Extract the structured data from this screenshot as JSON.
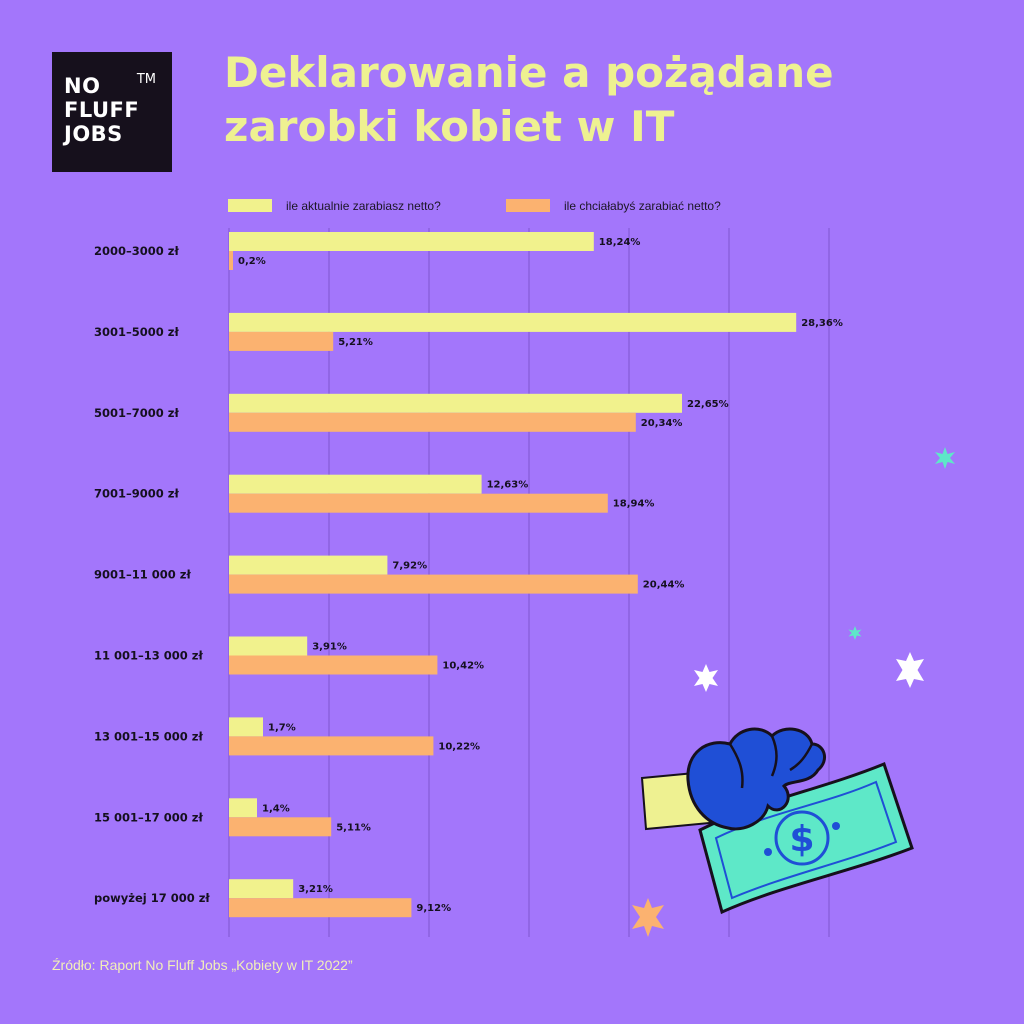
{
  "logo": {
    "line1": "NO",
    "line2": "FLUFF",
    "line3": "JOBS",
    "tm": "TM"
  },
  "title": {
    "line1": "Deklarowanie a pożądane",
    "line2": "zarobki kobiet w IT"
  },
  "source": "Źródło: Raport No Fluff Jobs „Kobiety w IT 2022”",
  "colors": {
    "background": "#a376fb",
    "current": "#f1f28d",
    "desired": "#fbb270",
    "title": "#eef191",
    "logo_bg": "#16101c"
  },
  "chart_data": {
    "type": "bar",
    "orientation": "horizontal",
    "categories": [
      "2000–3000 zł",
      "3001–5000 zł",
      "5001–7000 zł",
      "7001–9000 zł",
      "9001–11 000 zł",
      "11 001–13 000 zł",
      "13 001–15 000 zł",
      "15 001–17 000 zł",
      "powyżej 17 000 zł"
    ],
    "series": [
      {
        "name": "ile aktualnie zarabiasz netto?",
        "color": "#f1f28d",
        "values": [
          18.24,
          28.36,
          22.65,
          12.63,
          7.92,
          3.91,
          1.7,
          1.4,
          3.21
        ],
        "labels": [
          "18,24%",
          "28,36%",
          "22,65%",
          "12,63%",
          "7,92%",
          "3,91%",
          "1,7%",
          "1,4%",
          "3,21%"
        ]
      },
      {
        "name": "ile chciałabyś zarabiać netto?",
        "color": "#fbb270",
        "values": [
          0.2,
          5.21,
          20.34,
          18.94,
          20.44,
          10.42,
          10.22,
          5.11,
          9.12
        ],
        "labels": [
          "0,2%",
          "5,21%",
          "20,34%",
          "18,94%",
          "20,44%",
          "10,42%",
          "10,22%",
          "5,11%",
          "9,12%"
        ]
      }
    ],
    "xlim": [
      0,
      30
    ],
    "grid": true,
    "legend": "top"
  }
}
